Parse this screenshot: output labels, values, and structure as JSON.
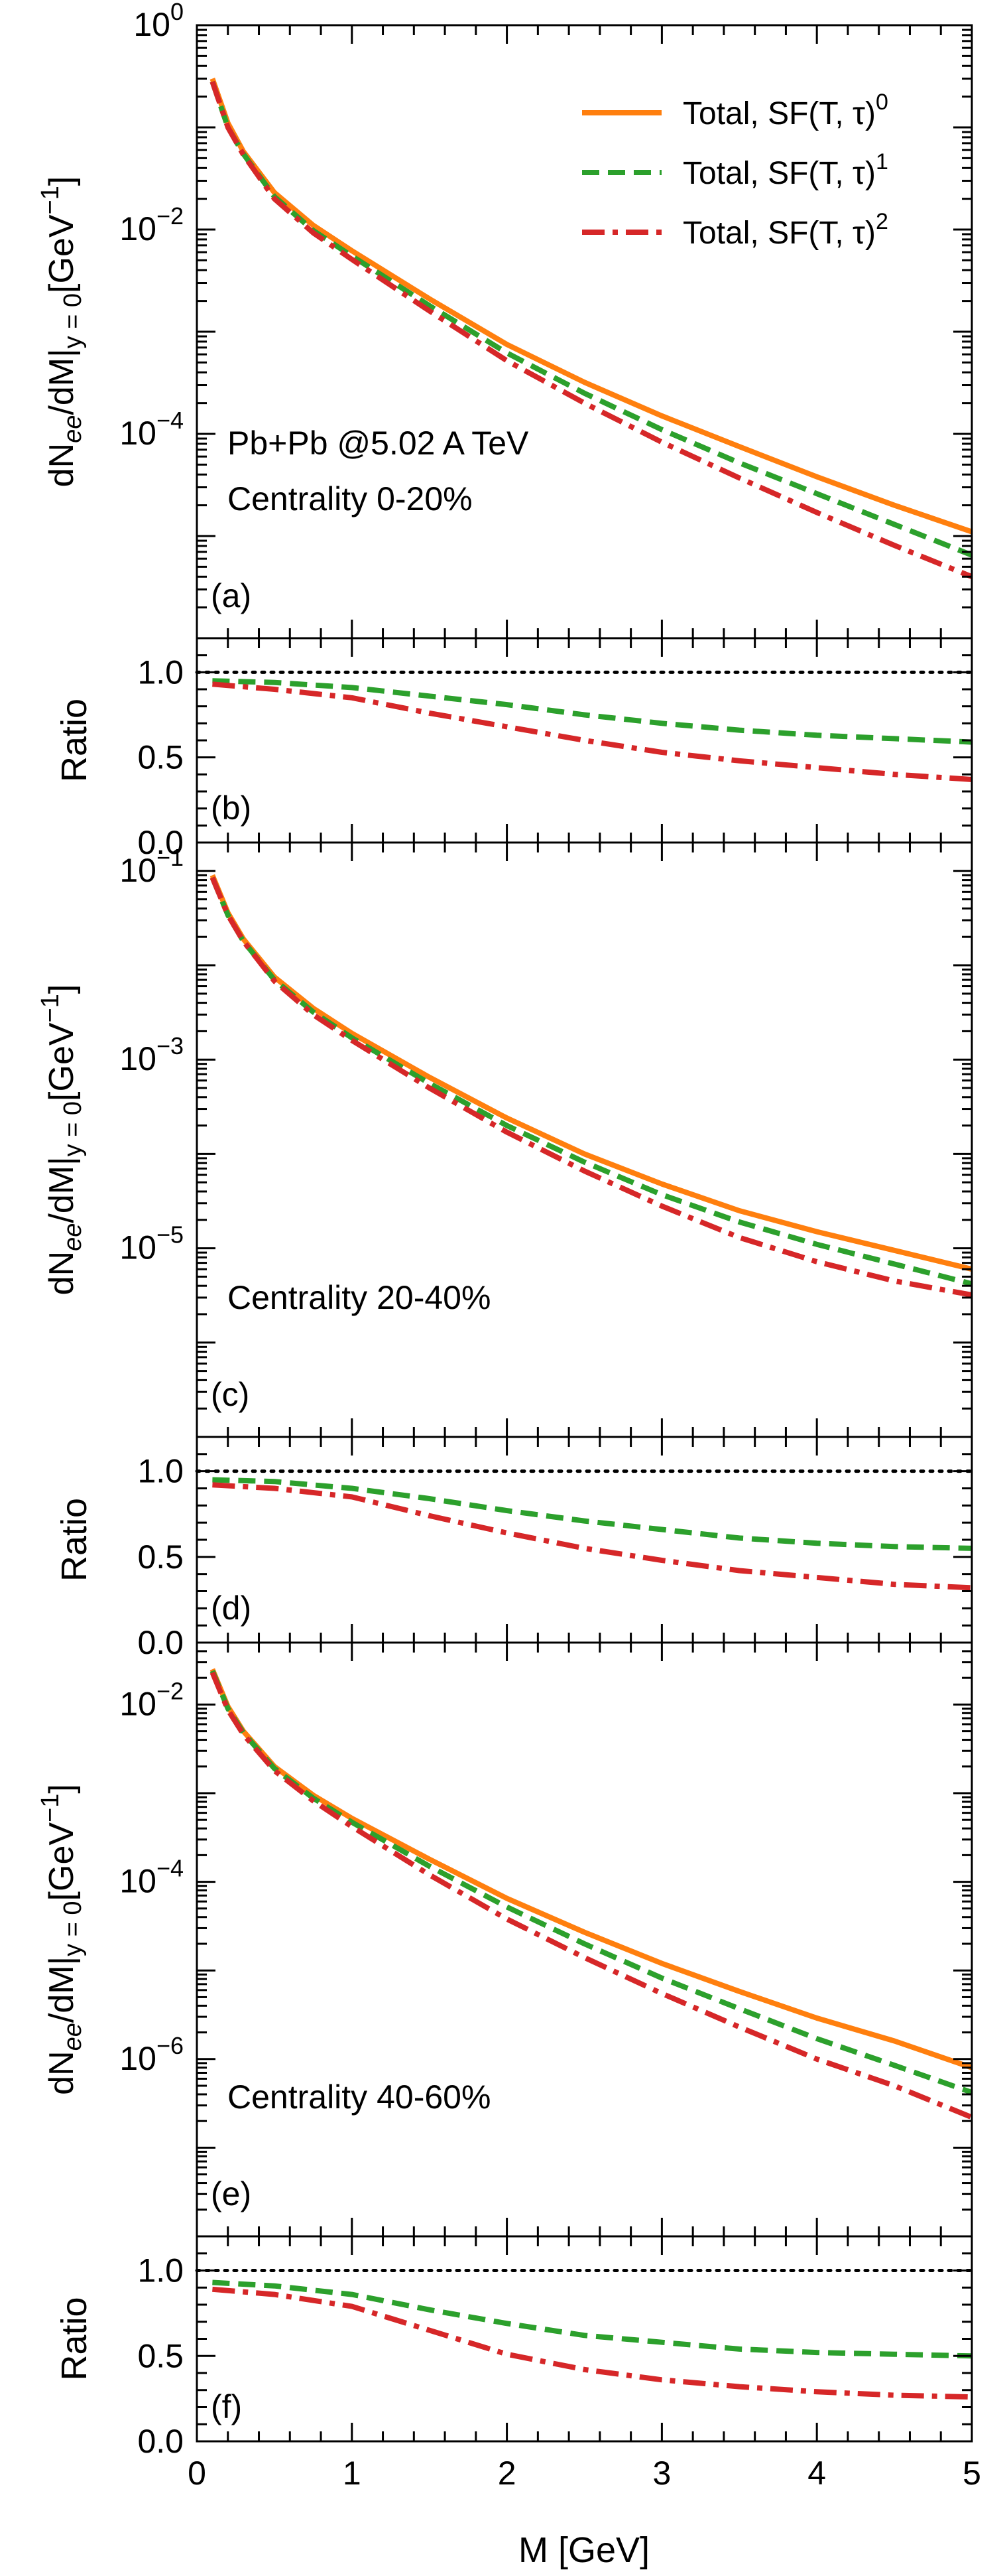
{
  "colors": {
    "total_sf0": "#ff7f0e",
    "total_sf1": "#2ca02c",
    "total_sf2": "#d62728",
    "axis": "#000000",
    "unity_line": "#000000"
  },
  "legend": {
    "placement": "top-right",
    "entries": [
      {
        "key": "sf0",
        "text": "Total, SF(T, τ)",
        "sup": "0",
        "style": "solid"
      },
      {
        "key": "sf1",
        "text": "Total, SF(T, τ)",
        "sup": "1",
        "style": "dashed"
      },
      {
        "key": "sf2",
        "text": "Total, SF(T, τ)",
        "sup": "2",
        "style": "dash-dot"
      }
    ]
  },
  "annotations": {
    "system": "Pb+Pb @5.02 A TeV"
  },
  "labels": {
    "x_axis": "M [GeV]",
    "spectrum_ylabel_prefix": "dN",
    "spectrum_ylabel_sub": "ee",
    "spectrum_ylabel_mid": "/dM|",
    "spectrum_ylabel_sub2": "y = 0",
    "spectrum_ylabel_unit": "[GeV",
    "spectrum_ylabel_unit_sup": "−1",
    "spectrum_ylabel_close": "]",
    "ratio_ylabel": "Ratio"
  },
  "x_ticks": [
    "0",
    "1",
    "2",
    "3",
    "4",
    "5"
  ],
  "ratio_ticks": [
    "0.0",
    "0.5",
    "1.0"
  ],
  "chart_data": [
    {
      "type": "line",
      "panel": "(a)",
      "annotation": "Centrality 0-20%",
      "xlim": [
        0,
        5
      ],
      "ylim": [
        1e-06,
        1
      ],
      "yscale": "log",
      "y_ticks": [
        {
          "base": "10",
          "exp": "0",
          "value": 1
        },
        {
          "base": "10",
          "exp": "-2",
          "value": 0.01
        },
        {
          "base": "10",
          "exp": "-4",
          "value": 0.0001
        }
      ],
      "x": [
        0.1,
        0.2,
        0.3,
        0.5,
        0.75,
        1.0,
        1.5,
        2.0,
        2.5,
        3.0,
        3.5,
        4.0,
        4.5,
        5.0
      ],
      "series": [
        {
          "key": "sf0",
          "values": [
            0.3,
            0.11,
            0.058,
            0.023,
            0.011,
            0.0062,
            0.0021,
            0.00075,
            0.00032,
            0.00015,
            7.5e-05,
            3.8e-05,
            2e-05,
            1.1e-05
          ]
        },
        {
          "key": "sf1",
          "values": [
            0.28,
            0.1,
            0.055,
            0.021,
            0.0098,
            0.0055,
            0.0018,
            0.00062,
            0.00025,
            0.00011,
            5.2e-05,
            2.6e-05,
            1.3e-05,
            6.5e-06
          ]
        },
        {
          "key": "sf2",
          "values": [
            0.28,
            0.1,
            0.054,
            0.02,
            0.0093,
            0.0051,
            0.0016,
            0.00052,
            0.0002,
            8.3e-05,
            3.7e-05,
            1.7e-05,
            8.1e-06,
            4e-06
          ]
        }
      ]
    },
    {
      "type": "line",
      "panel": "(b)",
      "xlim": [
        0,
        5
      ],
      "ylim": [
        0,
        1.2
      ],
      "reference_line": 1.0,
      "x": [
        0.1,
        0.5,
        1.0,
        1.5,
        2.0,
        2.5,
        3.0,
        3.5,
        4.0,
        4.5,
        5.0
      ],
      "series": [
        {
          "key": "sf1",
          "values": [
            0.95,
            0.94,
            0.91,
            0.86,
            0.81,
            0.75,
            0.7,
            0.66,
            0.63,
            0.61,
            0.59
          ]
        },
        {
          "key": "sf2",
          "values": [
            0.93,
            0.9,
            0.85,
            0.76,
            0.68,
            0.6,
            0.53,
            0.48,
            0.44,
            0.4,
            0.37
          ]
        }
      ]
    },
    {
      "type": "line",
      "panel": "(c)",
      "annotation": "Centrality 20-40%",
      "xlim": [
        0,
        5
      ],
      "ylim": [
        1e-07,
        0.2
      ],
      "yscale": "log",
      "y_ticks": [
        {
          "base": "10",
          "exp": "-1",
          "value": 0.1
        },
        {
          "base": "10",
          "exp": "-3",
          "value": 0.001
        },
        {
          "base": "10",
          "exp": "-5",
          "value": 1e-05
        }
      ],
      "x": [
        0.1,
        0.2,
        0.3,
        0.5,
        0.75,
        1.0,
        1.5,
        2.0,
        2.5,
        3.0,
        3.5,
        4.0,
        4.5,
        5.0
      ],
      "series": [
        {
          "key": "sf0",
          "values": [
            0.09,
            0.036,
            0.019,
            0.0075,
            0.0035,
            0.0019,
            0.00065,
            0.00024,
            0.0001,
            4.8e-05,
            2.5e-05,
            1.5e-05,
            9.5e-06,
            6e-06
          ]
        },
        {
          "key": "sf1",
          "values": [
            0.085,
            0.034,
            0.018,
            0.007,
            0.0032,
            0.0017,
            0.00056,
            0.0002,
            8.2e-05,
            3.7e-05,
            1.9e-05,
            1.1e-05,
            6.8e-06,
            4.2e-06
          ]
        },
        {
          "key": "sf2",
          "values": [
            0.085,
            0.034,
            0.018,
            0.0068,
            0.003,
            0.0016,
            0.0005,
            0.00017,
            6.6e-05,
            2.8e-05,
            1.3e-05,
            7.2e-06,
            4.5e-06,
            3.2e-06
          ]
        }
      ]
    },
    {
      "type": "line",
      "panel": "(d)",
      "xlim": [
        0,
        5
      ],
      "ylim": [
        0,
        1.2
      ],
      "reference_line": 1.0,
      "x": [
        0.1,
        0.5,
        1.0,
        1.5,
        2.0,
        2.5,
        3.0,
        3.5,
        4.0,
        4.5,
        5.0
      ],
      "series": [
        {
          "key": "sf1",
          "values": [
            0.95,
            0.94,
            0.9,
            0.84,
            0.77,
            0.71,
            0.66,
            0.61,
            0.58,
            0.56,
            0.55
          ]
        },
        {
          "key": "sf2",
          "values": [
            0.92,
            0.9,
            0.85,
            0.74,
            0.64,
            0.55,
            0.48,
            0.42,
            0.38,
            0.34,
            0.32
          ]
        }
      ]
    },
    {
      "type": "line",
      "panel": "(e)",
      "annotation": "Centrality 40-60%",
      "xlim": [
        0,
        5
      ],
      "ylim": [
        1e-08,
        0.05
      ],
      "yscale": "log",
      "y_ticks": [
        {
          "base": "10",
          "exp": "-2",
          "value": 0.01
        },
        {
          "base": "10",
          "exp": "-4",
          "value": 0.0001
        },
        {
          "base": "10",
          "exp": "-6",
          "value": 1e-06
        }
      ],
      "x": [
        0.1,
        0.2,
        0.3,
        0.5,
        0.75,
        1.0,
        1.5,
        2.0,
        2.5,
        3.0,
        3.5,
        4.0,
        4.5,
        5.0
      ],
      "series": [
        {
          "key": "sf0",
          "values": [
            0.025,
            0.0095,
            0.005,
            0.002,
            0.00095,
            0.00052,
            0.00018,
            6.5e-05,
            2.7e-05,
            1.2e-05,
            5.8e-06,
            2.9e-06,
            1.6e-06,
            8e-07
          ]
        },
        {
          "key": "sf1",
          "values": [
            0.024,
            0.009,
            0.0048,
            0.0019,
            0.00088,
            0.00047,
            0.00015,
            5.2e-05,
            2e-05,
            8.2e-06,
            3.7e-06,
            1.7e-06,
            8.5e-07,
            4.2e-07
          ]
        },
        {
          "key": "sf2",
          "values": [
            0.023,
            0.0087,
            0.0046,
            0.0018,
            0.00082,
            0.00042,
            0.00012,
            3.8e-05,
            1.4e-05,
            5.5e-06,
            2.3e-06,
            1e-06,
            5e-07,
            2.2e-07
          ]
        }
      ]
    },
    {
      "type": "line",
      "panel": "(f)",
      "xlim": [
        0,
        5
      ],
      "ylim": [
        0,
        1.2
      ],
      "reference_line": 1.0,
      "x": [
        0.1,
        0.5,
        1.0,
        1.5,
        2.0,
        2.5,
        3.0,
        3.5,
        4.0,
        4.5,
        5.0
      ],
      "series": [
        {
          "key": "sf1",
          "values": [
            0.93,
            0.91,
            0.86,
            0.77,
            0.69,
            0.62,
            0.58,
            0.54,
            0.52,
            0.51,
            0.5
          ]
        },
        {
          "key": "sf2",
          "values": [
            0.89,
            0.86,
            0.79,
            0.65,
            0.51,
            0.42,
            0.36,
            0.32,
            0.29,
            0.27,
            0.26
          ]
        }
      ]
    }
  ]
}
